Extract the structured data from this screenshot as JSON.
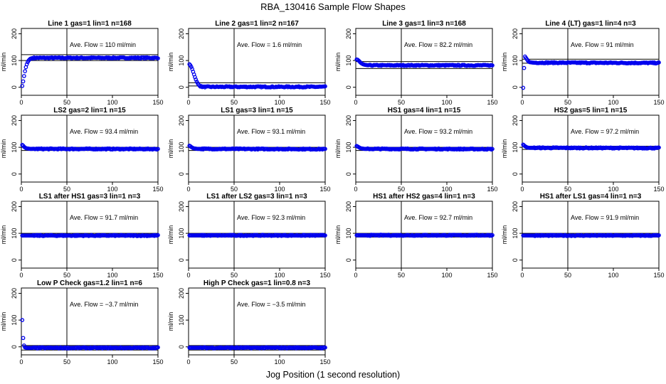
{
  "title": "RBA_130416  Sample Flow Shapes",
  "xlabel": "Jog Position (1 second resolution)",
  "chart_data": {
    "type": "scatter",
    "ylabel": "ml/min",
    "xlim": [
      0,
      150
    ],
    "ylim": [
      -30,
      220
    ],
    "xticks": [
      0,
      50,
      100,
      150
    ],
    "yticks": [
      0,
      100,
      200
    ],
    "vline_x": 50,
    "point_color": "#0000ee",
    "panels": [
      {
        "title": "Line 1 gas=1 lin=1 n=168",
        "annotation": "Ave. Flow =  110  ml/min",
        "hlines": [
          122,
          100
        ],
        "series": [
          {
            "x": [
              1,
              2,
              3,
              4,
              5,
              6,
              7,
              8,
              9,
              10,
              12,
              14,
              16,
              18,
              20,
              150
            ],
            "y": [
              5,
              22,
              42,
              60,
              75,
              86,
              94,
              100,
              104,
              107,
              109,
              110,
              110,
              110,
              110,
              110
            ]
          }
        ]
      },
      {
        "title": "Line 2 gas=1 lin=2 n=167",
        "annotation": "Ave. Flow =  1.6  ml/min",
        "hlines": [
          17,
          5
        ],
        "series": [
          {
            "x": [
              1,
              2,
              3,
              4,
              5,
              6,
              7,
              8,
              9,
              10,
              11,
              12,
              13,
              14,
              15,
              16,
              18,
              20,
              150
            ],
            "y": [
              86,
              82,
              76,
              68,
              58,
              48,
              38,
              29,
              21,
              15,
              10,
              6,
              4,
              3,
              2,
              1.6,
              1.4,
              1.6,
              1.6
            ]
          }
        ]
      },
      {
        "title": "Line 3 gas=1 lin=3 n=168",
        "annotation": "Ave. Flow =  82.2  ml/min",
        "hlines": [
          96,
          70
        ],
        "series": [
          {
            "x": [
              1,
              2,
              3,
              4,
              5,
              6,
              7,
              8,
              10,
              12,
              15,
              150
            ],
            "y": [
              104,
              103,
              100,
              97,
              93,
              90,
              88,
              86,
              84,
              83,
              82,
              82
            ]
          }
        ]
      },
      {
        "title": "Line 4 (LT) gas=1 lin=4 n=3",
        "annotation": "Ave. Flow =  91  ml/min",
        "hlines": [
          105,
          90
        ],
        "series": [
          {
            "x": [
              1,
              2,
              3,
              4,
              5,
              6,
              7,
              8,
              10,
              12,
              15,
              150
            ],
            "y": [
              -2,
              72,
              115,
              110,
              105,
              100,
              96,
              94,
              93,
              92,
              92,
              91
            ]
          }
        ]
      },
      {
        "title": "LS2 gas=2 lin=1 n=15",
        "annotation": "Ave. Flow =  93.4  ml/min",
        "hlines": [
          100,
          88
        ],
        "series": [
          {
            "x": [
              1,
              2,
              3,
              4,
              5,
              6,
              8,
              10,
              150
            ],
            "y": [
              109,
              106,
              102,
              99,
              97,
              96,
              95,
              94,
              93.4
            ]
          }
        ]
      },
      {
        "title": "LS1 gas=3 lin=1 n=15",
        "annotation": "Ave. Flow =  93.1  ml/min",
        "hlines": [
          100,
          88
        ],
        "series": [
          {
            "x": [
              1,
              2,
              3,
              4,
              5,
              6,
              8,
              10,
              150
            ],
            "y": [
              106,
              104,
              101,
              99,
              97,
              96,
              95,
              94,
              93.1
            ]
          }
        ]
      },
      {
        "title": "HS1 gas=4 lin=1 n=15",
        "annotation": "Ave. Flow =  93.2  ml/min",
        "hlines": [
          100,
          88
        ],
        "series": [
          {
            "x": [
              1,
              2,
              3,
              4,
              5,
              6,
              8,
              10,
              150
            ],
            "y": [
              105,
              103,
              101,
              99,
              97,
              96,
              95,
              94,
              93.2
            ]
          }
        ]
      },
      {
        "title": "HS2 gas=5 lin=1 n=15",
        "annotation": "Ave. Flow =  97.2  ml/min",
        "hlines": [
          104,
          92
        ],
        "series": [
          {
            "x": [
              1,
              2,
              3,
              4,
              5,
              6,
              8,
              10,
              150
            ],
            "y": [
              110,
              107,
              104,
              102,
              100,
              99,
              98,
              98,
              97.2
            ]
          }
        ]
      },
      {
        "title": "LS1 after HS1 gas=3 lin=1 n=3",
        "annotation": "Ave. Flow =  91.7  ml/min",
        "hlines": [
          100,
          86
        ],
        "series": [
          {
            "x": [
              1,
              150
            ],
            "y": [
              91.7,
              91.7
            ]
          }
        ]
      },
      {
        "title": "LS1 after LS2 gas=3 lin=1 n=3",
        "annotation": "Ave. Flow =  92.3  ml/min",
        "hlines": [
          100,
          86
        ],
        "series": [
          {
            "x": [
              1,
              150
            ],
            "y": [
              92.3,
              92.3
            ]
          }
        ]
      },
      {
        "title": "HS1 after HS2 gas=4 lin=1 n=3",
        "annotation": "Ave. Flow =  92.7  ml/min",
        "hlines": [
          100,
          86
        ],
        "series": [
          {
            "x": [
              1,
              150
            ],
            "y": [
              92.7,
              92.7
            ]
          }
        ]
      },
      {
        "title": "HS1 after LS1 gas=4 lin=1 n=3",
        "annotation": "Ave. Flow =  91.9  ml/min",
        "hlines": [
          100,
          86
        ],
        "series": [
          {
            "x": [
              1,
              150
            ],
            "y": [
              91.9,
              91.9
            ]
          }
        ]
      },
      {
        "title": "Low P Check gas=1.2 lin=1 n=6",
        "annotation": "Ave. Flow =  −3.7  ml/min",
        "hlines": [
          5,
          -12
        ],
        "series": [
          {
            "x": [
              1,
              2,
              3,
              4,
              5,
              6,
              8,
              10,
              150
            ],
            "y": [
              100,
              33,
              5,
              -2,
              -3,
              -4,
              -4,
              -4,
              -3.7
            ]
          }
        ]
      },
      {
        "title": "High P Check gas=1 lin=0.8 n=3",
        "annotation": "Ave. Flow =  −3.5  ml/min",
        "hlines": [
          5,
          -12
        ],
        "series": [
          {
            "x": [
              1,
              150
            ],
            "y": [
              -3.5,
              -3.5
            ]
          }
        ]
      }
    ]
  }
}
